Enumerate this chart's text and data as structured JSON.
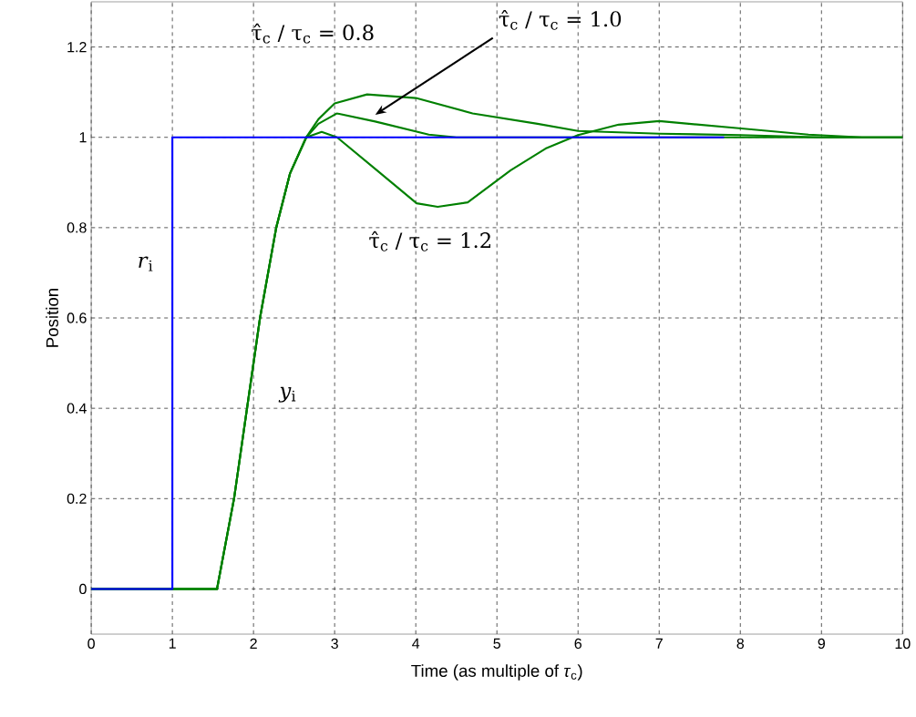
{
  "chart_data": {
    "type": "line",
    "xlabel": "Time (as multiple of *τ*$_{c}$)",
    "ylabel": "Position",
    "xlim": [
      0,
      10
    ],
    "ylim": [
      -0.1,
      1.3
    ],
    "xticks": [
      0,
      1,
      2,
      3,
      4,
      5,
      6,
      7,
      8,
      9,
      10
    ],
    "yticks": [
      0,
      0.2,
      0.4,
      0.6,
      0.8,
      1,
      1.2
    ],
    "grid": true,
    "line_style": "solid",
    "marker": "none",
    "legend": false,
    "annotations": [
      "*y*$_{i}$"
    ],
    "series": [
      {
        "name": "*r*$_{i}$",
        "color": "#0000ff",
        "x": [
          0,
          1,
          1,
          7.8
        ],
        "values": [
          0,
          0,
          1,
          1
        ]
      },
      {
        "name": "τ̂$_{c}$ / τ$_{c}$ = 0.8",
        "color": "#008000",
        "x": [
          0,
          1.55,
          1.76,
          1.92,
          2.08,
          2.28,
          2.45,
          2.65,
          2.8,
          3.0,
          3.4,
          4.0,
          4.7,
          5.5,
          6.0,
          7.0,
          8.0,
          9.0,
          10
        ],
        "values": [
          0,
          0,
          0.2,
          0.4,
          0.6,
          0.8,
          0.92,
          1.0,
          1.04,
          1.075,
          1.095,
          1.087,
          1.053,
          1.03,
          1.014,
          1.008,
          1.005,
          1.0,
          1.0
        ]
      },
      {
        "name": "τ̂$_{c}$ / τ$_{c}$ = 1.0",
        "color": "#008000",
        "x": [
          0,
          1.55,
          1.76,
          1.92,
          2.08,
          2.28,
          2.45,
          2.65,
          2.8,
          3.03,
          3.5,
          4.16,
          4.5,
          10
        ],
        "values": [
          0,
          0,
          0.2,
          0.4,
          0.6,
          0.8,
          0.92,
          1.0,
          1.03,
          1.053,
          1.035,
          1.006,
          1.0,
          1.0
        ]
      },
      {
        "name": "τ̂$_{c}$ / τ$_{c}$ = 1.2",
        "color": "#008000",
        "x": [
          0,
          1.55,
          1.76,
          1.92,
          2.08,
          2.28,
          2.45,
          2.65,
          2.84,
          3.03,
          3.52,
          4.01,
          4.27,
          4.64,
          5.17,
          5.6,
          6.0,
          6.5,
          7.0,
          7.98,
          8.84,
          9.5,
          10
        ],
        "values": [
          0,
          0,
          0.2,
          0.4,
          0.6,
          0.8,
          0.92,
          1.0,
          1.012,
          1.0,
          0.927,
          0.854,
          0.846,
          0.856,
          0.927,
          0.975,
          1.005,
          1.028,
          1.036,
          1.02,
          1.006,
          1.0,
          1.0
        ]
      }
    ]
  }
}
